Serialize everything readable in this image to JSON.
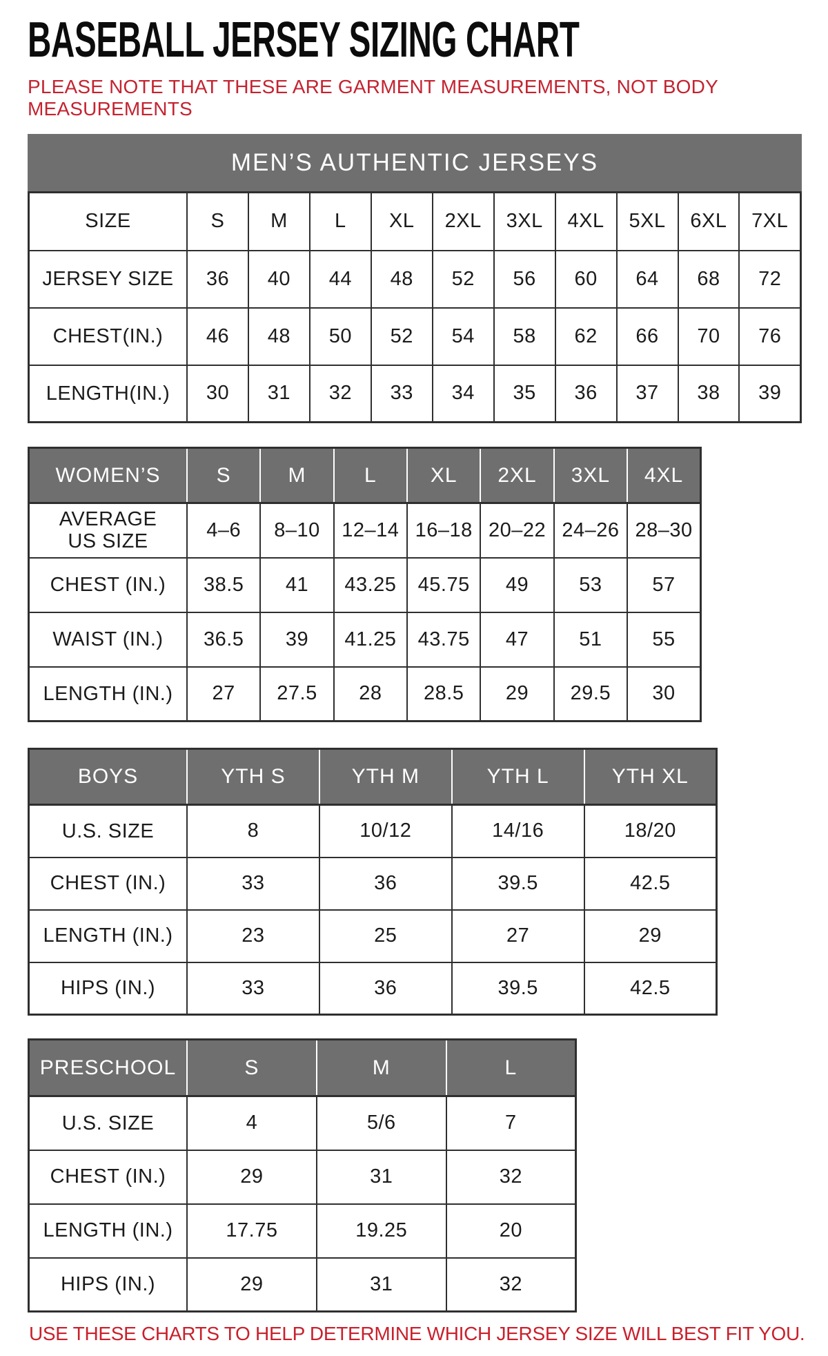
{
  "page": {
    "title": "BASEBALL JERSEY SIZING CHART",
    "note": "PLEASE NOTE THAT THESE ARE GARMENT MEASUREMENTS, NOT BODY MEASUREMENTS",
    "footer": "USE THESE CHARTS TO HELP DETERMINE WHICH JERSEY SIZE WILL BEST FIT YOU.",
    "colors": {
      "accent_red": "#c42330",
      "header_gray": "#6f6f6f",
      "border_dark": "#2f2f2f"
    }
  },
  "tables": {
    "mens": {
      "banner": "MEN’S AUTHENTIC JERSEYS",
      "header": [
        "SIZE",
        "S",
        "M",
        "L",
        "XL",
        "2XL",
        "3XL",
        "4XL",
        "5XL",
        "6XL",
        "7XL"
      ],
      "rows": [
        {
          "label": "JERSEY SIZE",
          "values": [
            "36",
            "40",
            "44",
            "48",
            "52",
            "56",
            "60",
            "64",
            "68",
            "72"
          ]
        },
        {
          "label": "CHEST(IN.)",
          "values": [
            "46",
            "48",
            "50",
            "52",
            "54",
            "58",
            "62",
            "66",
            "70",
            "76"
          ]
        },
        {
          "label": "LENGTH(IN.)",
          "values": [
            "30",
            "31",
            "32",
            "33",
            "34",
            "35",
            "36",
            "37",
            "38",
            "39"
          ]
        }
      ]
    },
    "womens": {
      "header": [
        "WOMEN’S",
        "S",
        "M",
        "L",
        "XL",
        "2XL",
        "3XL",
        "4XL"
      ],
      "rows": [
        {
          "label": "AVERAGE\nUS SIZE",
          "values": [
            "4–6",
            "8–10",
            "12–14",
            "16–18",
            "20–22",
            "24–26",
            "28–30"
          ]
        },
        {
          "label": "CHEST (IN.)",
          "values": [
            "38.5",
            "41",
            "43.25",
            "45.75",
            "49",
            "53",
            "57"
          ]
        },
        {
          "label": "WAIST (IN.)",
          "values": [
            "36.5",
            "39",
            "41.25",
            "43.75",
            "47",
            "51",
            "55"
          ]
        },
        {
          "label": "LENGTH (IN.)",
          "values": [
            "27",
            "27.5",
            "28",
            "28.5",
            "29",
            "29.5",
            "30"
          ]
        }
      ]
    },
    "boys": {
      "header": [
        "BOYS",
        "YTH S",
        "YTH M",
        "YTH L",
        "YTH XL"
      ],
      "rows": [
        {
          "label": "U.S. SIZE",
          "values": [
            "8",
            "10/12",
            "14/16",
            "18/20"
          ]
        },
        {
          "label": "CHEST (IN.)",
          "values": [
            "33",
            "36",
            "39.5",
            "42.5"
          ]
        },
        {
          "label": "LENGTH (IN.)",
          "values": [
            "23",
            "25",
            "27",
            "29"
          ]
        },
        {
          "label": "HIPS (IN.)",
          "values": [
            "33",
            "36",
            "39.5",
            "42.5"
          ]
        }
      ]
    },
    "preschool": {
      "header": [
        "PRESCHOOL",
        "S",
        "M",
        "L"
      ],
      "rows": [
        {
          "label": "U.S. SIZE",
          "values": [
            "4",
            "5/6",
            "7"
          ]
        },
        {
          "label": "CHEST (IN.)",
          "values": [
            "29",
            "31",
            "32"
          ]
        },
        {
          "label": "LENGTH (IN.)",
          "values": [
            "17.75",
            "19.25",
            "20"
          ]
        },
        {
          "label": "HIPS (IN.)",
          "values": [
            "29",
            "31",
            "32"
          ]
        }
      ]
    }
  }
}
